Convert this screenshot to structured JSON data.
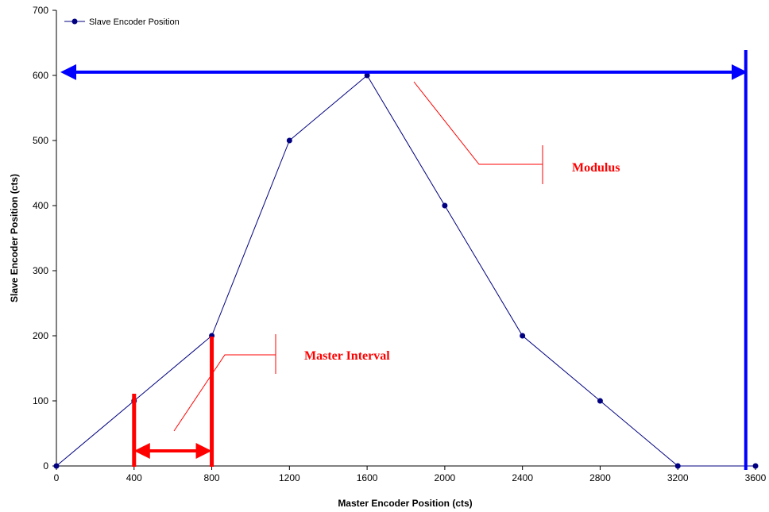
{
  "chart_data": {
    "type": "line",
    "title": "",
    "xlabel": "Master Encoder Position (cts)",
    "ylabel": "Slave Encoder Position (cts)",
    "xlim": [
      0,
      3600
    ],
    "ylim": [
      0,
      700
    ],
    "x_ticks": [
      0,
      400,
      800,
      1200,
      1600,
      2000,
      2400,
      2800,
      3200,
      3600
    ],
    "y_ticks": [
      0,
      100,
      200,
      300,
      400,
      500,
      600,
      700
    ],
    "grid": false,
    "legend_position": "top-left",
    "series": [
      {
        "name": "Slave Encoder Position",
        "color": "#000080",
        "x": [
          0,
          400,
          800,
          1200,
          1600,
          2000,
          2400,
          2800,
          3200,
          3600
        ],
        "y": [
          0,
          100,
          200,
          500,
          600,
          400,
          200,
          100,
          0,
          0
        ]
      }
    ],
    "annotations": [
      {
        "text": "Modulus",
        "color": "#ff0000"
      },
      {
        "text": "Master Interval",
        "color": "#ff0000"
      }
    ],
    "modulus_marker": {
      "x_end": 3550,
      "y": 605,
      "color": "#0000ff"
    },
    "interval_marker": {
      "x_start": 400,
      "x_end": 800,
      "color": "#ff0000"
    }
  }
}
